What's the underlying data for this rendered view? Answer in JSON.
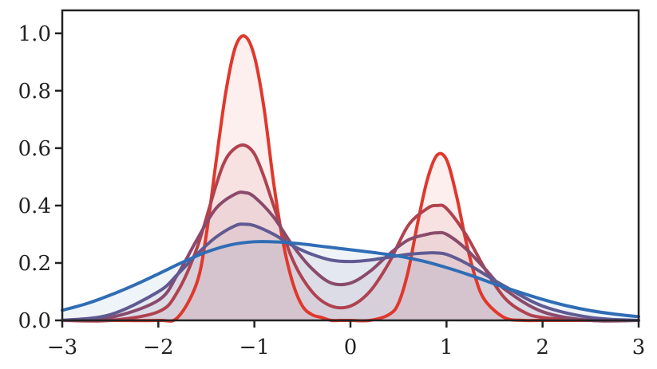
{
  "chart_data": {
    "type": "area",
    "title": "",
    "xlabel": "",
    "ylabel": "",
    "xlim": [
      -3,
      3
    ],
    "ylim": [
      0,
      1.08
    ],
    "x_ticks": [
      -3,
      -2,
      -1,
      0,
      1,
      2,
      3
    ],
    "x_tick_labels": [
      "−3",
      "−2",
      "−1",
      "0",
      "1",
      "2",
      "3"
    ],
    "y_ticks": [
      0,
      0.2,
      0.4,
      0.6,
      0.8,
      1.0
    ],
    "y_tick_labels": [
      "0.0",
      "0.2",
      "0.4",
      "0.6",
      "0.8",
      "1.0"
    ],
    "grid": false,
    "legend": "none",
    "fill_under_curves": true,
    "colors": [
      "#e0382c",
      "#b0424f",
      "#8a4a6b",
      "#605a92",
      "#2f6db5"
    ],
    "series_note_none": "",
    "series": [
      {
        "x": [
          -3.0,
          -2.5,
          -2.0,
          -1.8,
          -1.6,
          -1.5,
          -1.4,
          -1.3,
          -1.2,
          -1.1,
          -1.0,
          -0.9,
          -0.8,
          -0.7,
          -0.6,
          -0.5,
          -0.4,
          -0.3,
          -0.2,
          -0.1,
          0.0,
          0.2,
          0.4,
          0.5,
          0.6,
          0.7,
          0.8,
          0.9,
          1.0,
          1.1,
          1.2,
          1.3,
          1.4,
          1.6,
          1.8,
          2.0,
          2.5,
          3.0
        ],
        "y": [
          0.0,
          0.0,
          0.0,
          0.01,
          0.13,
          0.3,
          0.55,
          0.79,
          0.95,
          0.99,
          0.92,
          0.74,
          0.48,
          0.27,
          0.13,
          0.05,
          0.02,
          0.01,
          0.0,
          0.0,
          0.0,
          0.0,
          0.02,
          0.06,
          0.17,
          0.34,
          0.49,
          0.575,
          0.56,
          0.44,
          0.28,
          0.15,
          0.07,
          0.01,
          0.0,
          0.0,
          0.0,
          0.0
        ]
      },
      {
        "x": [
          -3.0,
          -2.5,
          -2.0,
          -1.8,
          -1.6,
          -1.4,
          -1.3,
          -1.2,
          -1.1,
          -1.0,
          -0.9,
          -0.8,
          -0.6,
          -0.4,
          -0.2,
          0.0,
          0.2,
          0.4,
          0.6,
          0.8,
          0.9,
          1.0,
          1.2,
          1.4,
          1.6,
          1.8,
          2.0,
          2.5,
          3.0
        ],
        "y": [
          0.0,
          0.0,
          0.03,
          0.1,
          0.25,
          0.47,
          0.56,
          0.6,
          0.61,
          0.58,
          0.5,
          0.4,
          0.21,
          0.1,
          0.05,
          0.05,
          0.1,
          0.2,
          0.33,
          0.39,
          0.4,
          0.39,
          0.3,
          0.18,
          0.08,
          0.03,
          0.01,
          0.0,
          0.0
        ]
      },
      {
        "x": [
          -3.0,
          -2.5,
          -2.0,
          -1.8,
          -1.6,
          -1.4,
          -1.2,
          -1.1,
          -1.0,
          -0.8,
          -0.6,
          -0.4,
          -0.2,
          0.0,
          0.2,
          0.4,
          0.6,
          0.8,
          0.9,
          1.0,
          1.2,
          1.4,
          1.6,
          2.0,
          2.5,
          3.0
        ],
        "y": [
          0.0,
          0.01,
          0.07,
          0.16,
          0.28,
          0.39,
          0.44,
          0.445,
          0.43,
          0.36,
          0.26,
          0.18,
          0.13,
          0.13,
          0.17,
          0.23,
          0.28,
          0.3,
          0.305,
          0.3,
          0.25,
          0.18,
          0.11,
          0.03,
          0.0,
          0.0
        ]
      },
      {
        "x": [
          -3.0,
          -2.5,
          -2.0,
          -1.8,
          -1.6,
          -1.4,
          -1.2,
          -1.1,
          -1.0,
          -0.8,
          -0.6,
          -0.4,
          -0.2,
          0.0,
          0.2,
          0.4,
          0.6,
          0.8,
          0.9,
          1.0,
          1.2,
          1.4,
          1.6,
          2.0,
          2.5,
          3.0
        ],
        "y": [
          0.0,
          0.02,
          0.1,
          0.16,
          0.23,
          0.29,
          0.33,
          0.335,
          0.33,
          0.3,
          0.26,
          0.23,
          0.21,
          0.205,
          0.21,
          0.22,
          0.23,
          0.235,
          0.235,
          0.23,
          0.2,
          0.16,
          0.12,
          0.05,
          0.01,
          0.0
        ]
      },
      {
        "x": [
          -3.0,
          -2.75,
          -2.5,
          -2.25,
          -2.0,
          -1.75,
          -1.5,
          -1.25,
          -1.0,
          -0.75,
          -0.5,
          -0.25,
          0.0,
          0.25,
          0.5,
          0.75,
          1.0,
          1.25,
          1.5,
          1.75,
          2.0,
          2.25,
          2.5,
          2.75,
          3.0
        ],
        "y": [
          0.035,
          0.058,
          0.088,
          0.123,
          0.162,
          0.202,
          0.238,
          0.263,
          0.274,
          0.273,
          0.266,
          0.256,
          0.246,
          0.236,
          0.224,
          0.207,
          0.184,
          0.157,
          0.127,
          0.099,
          0.073,
          0.051,
          0.034,
          0.022,
          0.013
        ]
      }
    ]
  }
}
